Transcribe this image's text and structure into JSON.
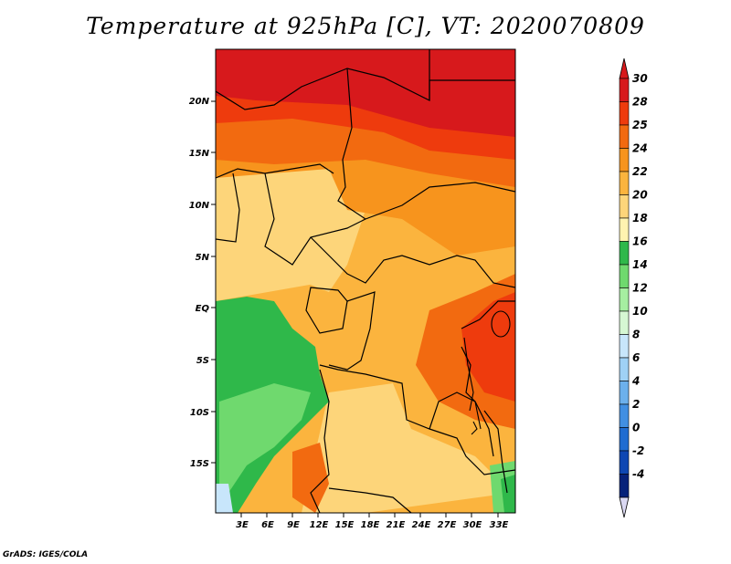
{
  "title": "Temperature at 925hPa [C], VT: 2020070809",
  "credit": "GrADS: IGES/COLA",
  "lat_labels": [
    "20N",
    "15N",
    "10N",
    "5N",
    "EQ",
    "5S",
    "10S",
    "15S"
  ],
  "lon_labels": [
    "3E",
    "6E",
    "9E",
    "12E",
    "15E",
    "18E",
    "21E",
    "24E",
    "27E",
    "30E",
    "33E"
  ],
  "colorbar": {
    "labels": [
      "30",
      "28",
      "25",
      "24",
      "22",
      "20",
      "18",
      "16",
      "14",
      "12",
      "10",
      "8",
      "6",
      "4",
      "2",
      "0",
      "-2",
      "-4"
    ],
    "colors": [
      "#d7191c",
      "#ee3b0d",
      "#f26a10",
      "#f7941d",
      "#fbb43e",
      "#fdd57a",
      "#fff3b0",
      "#2fb84a",
      "#6fd96e",
      "#a6eea1",
      "#d6f7d3",
      "#c8e6fb",
      "#9fd1f5",
      "#6cb0ec",
      "#418fe2",
      "#1f6cd1",
      "#0e47b3",
      "#06227a"
    ],
    "top_color": "#d7191c",
    "bottom_color": "#dad8f2"
  },
  "map_data": {
    "region": {
      "lon_range": [
        0,
        35
      ],
      "lat_range": [
        -19,
        24.5
      ]
    },
    "field": "Temperature at 925hPa",
    "units": "C"
  }
}
